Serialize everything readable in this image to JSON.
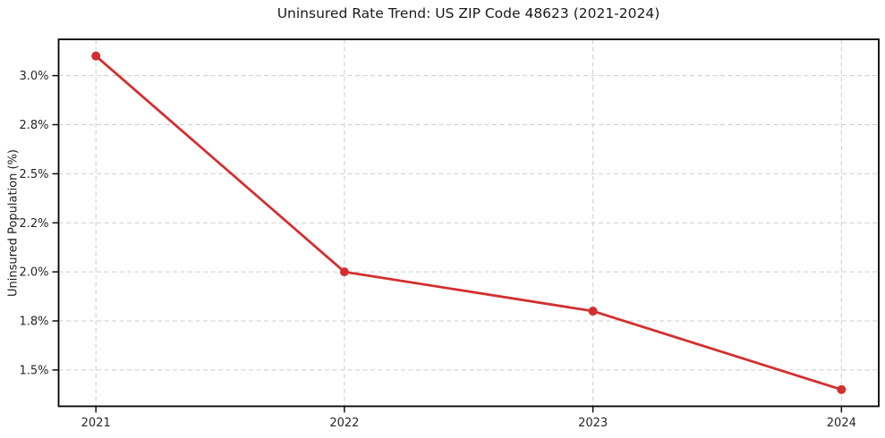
{
  "chart_data": {
    "type": "line",
    "title": "Uninsured Rate Trend: US ZIP Code 48623 (2021-2024)",
    "xlabel": "",
    "ylabel": "Uninsured Population (%)",
    "x": [
      2021,
      2022,
      2023,
      2024
    ],
    "series": [
      {
        "values": [
          3.1,
          2.0,
          1.8,
          1.4
        ],
        "color": "#d32f2f",
        "marker": "circle",
        "marker_size": 5,
        "line_width": 2.8
      }
    ],
    "xlim": [
      2020.85,
      2024.15
    ],
    "ylim": [
      1.315,
      3.185
    ],
    "xticks": [
      {
        "value": 2021,
        "label": "2021"
      },
      {
        "value": 2022,
        "label": "2022"
      },
      {
        "value": 2023,
        "label": "2023"
      },
      {
        "value": 2024,
        "label": "2024"
      }
    ],
    "yticks": [
      {
        "value": 1.5,
        "label": "1.5%"
      },
      {
        "value": 1.75,
        "label": "1.8%"
      },
      {
        "value": 2.0,
        "label": "2.0%"
      },
      {
        "value": 2.25,
        "label": "2.2%"
      },
      {
        "value": 2.5,
        "label": "2.5%"
      },
      {
        "value": 2.75,
        "label": "2.8%"
      },
      {
        "value": 3.0,
        "label": "3.0%"
      }
    ],
    "grid": {
      "show": true,
      "style": "dashed",
      "color": "#cdcdcd"
    },
    "legend": {
      "show": false
    },
    "colors": {
      "line": "#d32f2f",
      "grid": "#cdcdcd",
      "spine": "#000000",
      "tick_label": "#262626",
      "title": "#1a1a1a",
      "background": "#ffffff"
    }
  }
}
